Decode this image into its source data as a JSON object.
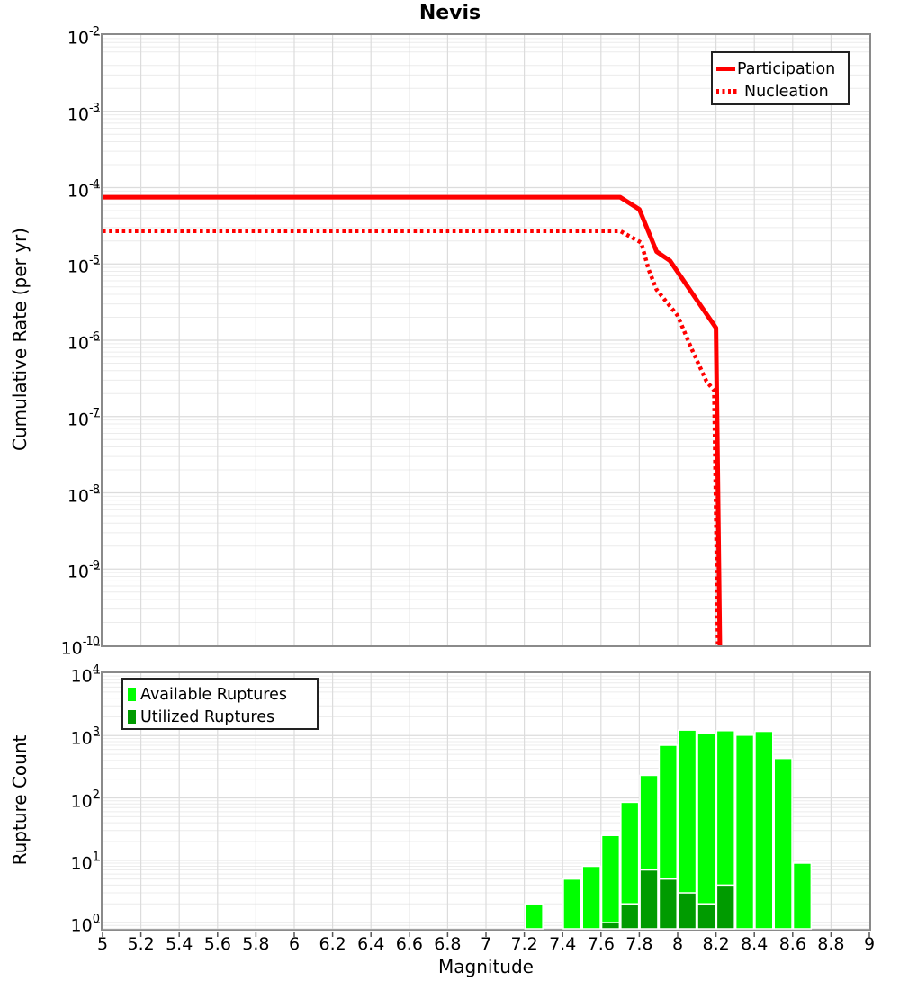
{
  "title": "Nevis",
  "colors": {
    "series_red": "#ff0000",
    "available_green": "#00ff00",
    "utilized_green": "#009b00",
    "grid_major": "#dcdcdc",
    "grid_minor": "#ececec",
    "frame": "#8a8a8a",
    "tick": "#555555"
  },
  "chart_data": [
    {
      "type": "line",
      "title": "Nevis",
      "xlabel": "",
      "ylabel": "Cumulative Rate (per yr)",
      "xlim": [
        5,
        9
      ],
      "ylim_exp": [
        -10,
        -2
      ],
      "grid": "on",
      "x_tick_values": [
        5,
        5.2,
        5.4,
        5.6,
        5.8,
        6,
        6.2,
        6.4,
        6.6,
        6.8,
        7,
        7.2,
        7.4,
        7.6,
        7.8,
        8,
        8.2,
        8.4,
        8.6,
        8.8,
        9
      ],
      "x_tick_labels_visible": false,
      "y_tick_exponents": [
        -2,
        -3,
        -4,
        -5,
        -6,
        -7,
        -8,
        -9,
        -10
      ],
      "legend": {
        "position": "top-right"
      },
      "series": [
        {
          "name": "Participation",
          "style": "solid",
          "color": "#ff0000",
          "points": [
            [
              5.0,
              7.5e-05
            ],
            [
              7.7,
              7.5e-05
            ],
            [
              7.8,
              5.2e-05
            ],
            [
              7.89,
              1.45e-05
            ],
            [
              7.96,
              1.1e-05
            ],
            [
              8.08,
              4e-06
            ],
            [
              8.2,
              1.45e-06
            ],
            [
              8.22,
              1e-10
            ]
          ]
        },
        {
          "name": "Nucleation",
          "style": "dotted",
          "color": "#ff0000",
          "points": [
            [
              5.0,
              2.7e-05
            ],
            [
              7.7,
              2.7e-05
            ],
            [
              7.81,
              1.9e-05
            ],
            [
              7.85,
              8.3e-06
            ],
            [
              7.89,
              4.6e-06
            ],
            [
              8.0,
              2.1e-06
            ],
            [
              8.07,
              8e-07
            ],
            [
              8.15,
              2.9e-07
            ],
            [
              8.19,
              2.2e-07
            ],
            [
              8.21,
              1e-10
            ]
          ]
        }
      ]
    },
    {
      "type": "bar",
      "title": "",
      "xlabel": "Magnitude",
      "ylabel": "Rupture Count",
      "xlim": [
        5,
        9
      ],
      "ylim_exp": [
        -0.1,
        4
      ],
      "grid": "on",
      "bar_width": 0.1,
      "x_tick_values": [
        5,
        5.2,
        5.4,
        5.6,
        5.8,
        6,
        6.2,
        6.4,
        6.6,
        6.8,
        7,
        7.2,
        7.4,
        7.6,
        7.8,
        8,
        8.2,
        8.4,
        8.6,
        8.8,
        9
      ],
      "x_tick_labels": [
        "5",
        "5.2",
        "5.4",
        "5.6",
        "5.8",
        "6",
        "6.2",
        "6.4",
        "6.6",
        "6.8",
        "7",
        "7.2",
        "7.4",
        "7.6",
        "7.8",
        "8",
        "8.2",
        "8.4",
        "8.6",
        "8.8",
        "9"
      ],
      "x_tick_labels_visible": true,
      "y_tick_exponents": [
        4,
        3,
        2,
        1,
        0
      ],
      "legend": {
        "position": "top-left"
      },
      "series": [
        {
          "name": "Available Ruptures",
          "color": "#00ff00",
          "bars": [
            [
              7.25,
              2
            ],
            [
              7.45,
              5
            ],
            [
              7.55,
              8
            ],
            [
              7.65,
              25
            ],
            [
              7.75,
              85
            ],
            [
              7.85,
              230
            ],
            [
              7.95,
              700
            ],
            [
              8.05,
              1225
            ],
            [
              8.15,
              1075
            ],
            [
              8.25,
              1200
            ],
            [
              8.35,
              1015
            ],
            [
              8.45,
              1170
            ],
            [
              8.55,
              430
            ],
            [
              8.65,
              9
            ]
          ]
        },
        {
          "name": "Utilized Ruptures",
          "color": "#009b00",
          "bars": [
            [
              7.65,
              1
            ],
            [
              7.75,
              2
            ],
            [
              7.85,
              7
            ],
            [
              7.95,
              5
            ],
            [
              8.05,
              3
            ],
            [
              8.15,
              2
            ],
            [
              8.25,
              4
            ]
          ]
        }
      ]
    }
  ]
}
